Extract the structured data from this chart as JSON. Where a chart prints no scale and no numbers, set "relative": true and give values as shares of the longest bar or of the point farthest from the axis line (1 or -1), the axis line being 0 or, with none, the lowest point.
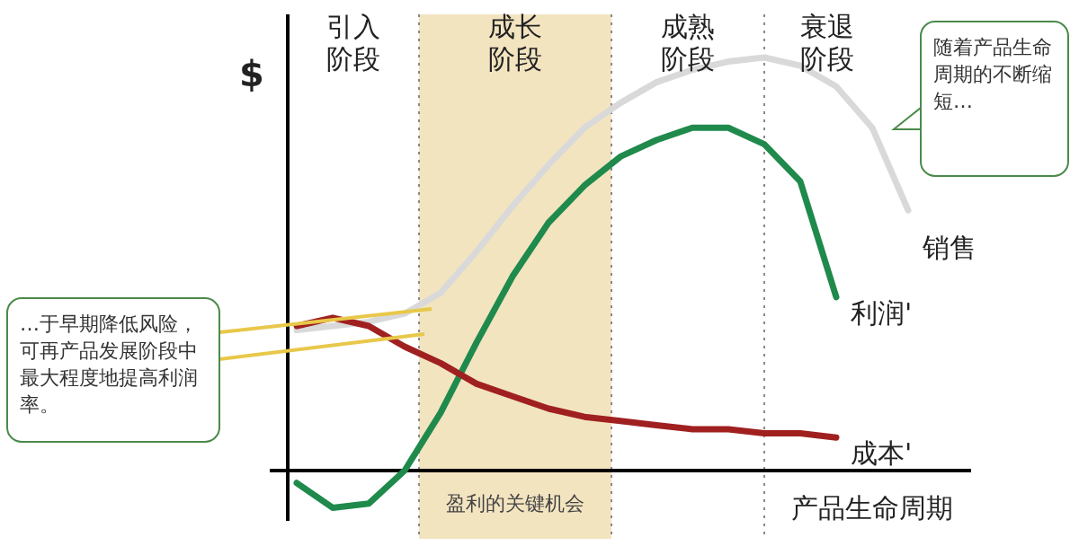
{
  "chart_data": {
    "type": "line",
    "relative": true,
    "ylabel": "$",
    "xlabel": "产品生命周期",
    "categories": [
      null,
      null,
      null,
      null,
      null,
      null,
      null,
      null,
      null,
      null,
      null,
      null,
      null,
      null,
      null,
      null,
      null,
      null
    ],
    "series": [
      {
        "name": "销售",
        "color": "#d9d9d9",
        "values": [
          0.34,
          0.35,
          0.36,
          0.38,
          0.43,
          0.53,
          0.64,
          0.74,
          0.83,
          0.89,
          0.94,
          0.97,
          0.99,
          1.0,
          0.98,
          0.93,
          0.83,
          0.63
        ]
      },
      {
        "name": "利润'",
        "color": "#1f8a4c",
        "values": [
          -0.03,
          -0.09,
          -0.08,
          0,
          0.14,
          0.31,
          0.47,
          0.6,
          0.69,
          0.76,
          0.8,
          0.83,
          0.83,
          0.79,
          0.7,
          0.42,
          null,
          null
        ]
      },
      {
        "name": "成本'",
        "color": "#a02020",
        "values": [
          0.35,
          0.37,
          0.35,
          0.3,
          0.26,
          0.21,
          0.18,
          0.15,
          0.13,
          0.12,
          0.11,
          0.1,
          0.1,
          0.09,
          0.09,
          0.08,
          null,
          null
        ]
      }
    ],
    "annotations": [
      "引入阶段",
      "成长阶段",
      "成熟阶段",
      "衰退阶段",
      "盈利的关键机会",
      "随着产品生命周期的不断缩短…",
      "…于早期降低风险，可再产品发展阶段中最大程度地提高利润率。"
    ],
    "legend": false,
    "marker": "none",
    "line_style": "solid"
  }
}
